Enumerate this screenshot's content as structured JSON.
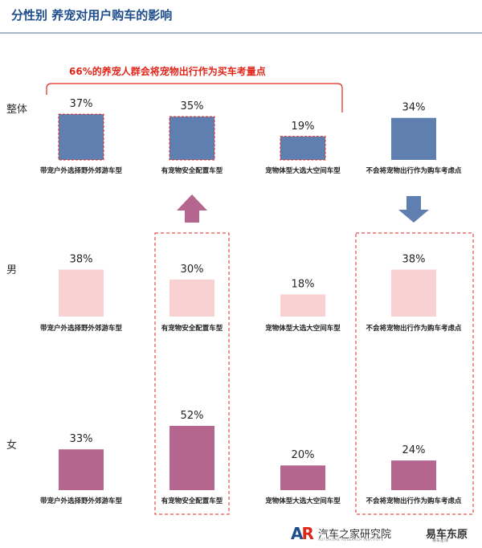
{
  "title": "分性别  养宠对用户购车的影响",
  "annotation": "66%的养宠人群会将宠物出行作为买车考量点",
  "row_labels": [
    "整体",
    "男",
    "女"
  ],
  "logo": {
    "text": "汽车之家研究院",
    "subtext": "AUTOHOME RESEARCH INSTITUTE",
    "right_text": "易车东原",
    "right_subtext": "易车星球"
  },
  "colors": {
    "overall": "#5f7fb1",
    "male": "#f8d2d3",
    "female": "#b5668f",
    "highlight": "#e0261b",
    "up_arrow": "#b5668f",
    "down_arrow": "#5f7fb1"
  },
  "chart_data": {
    "type": "bar",
    "categories": [
      "带宠户外选择野外郊游车型",
      "有宠物安全配置车型",
      "宠物体型大选大空间车型",
      "不会将宠物出行作为购车考虑点"
    ],
    "series": [
      {
        "name": "整体",
        "values": [
          37,
          35,
          19,
          34
        ],
        "labels": [
          "37%",
          "35%",
          "19%",
          "34%"
        ]
      },
      {
        "name": "男",
        "values": [
          38,
          30,
          18,
          38
        ],
        "labels": [
          "38%",
          "30%",
          "18%",
          "38%"
        ]
      },
      {
        "name": "女",
        "values": [
          33,
          52,
          20,
          24
        ],
        "labels": [
          "33%",
          "52%",
          "20%",
          "24%"
        ]
      }
    ],
    "unit": "%"
  }
}
